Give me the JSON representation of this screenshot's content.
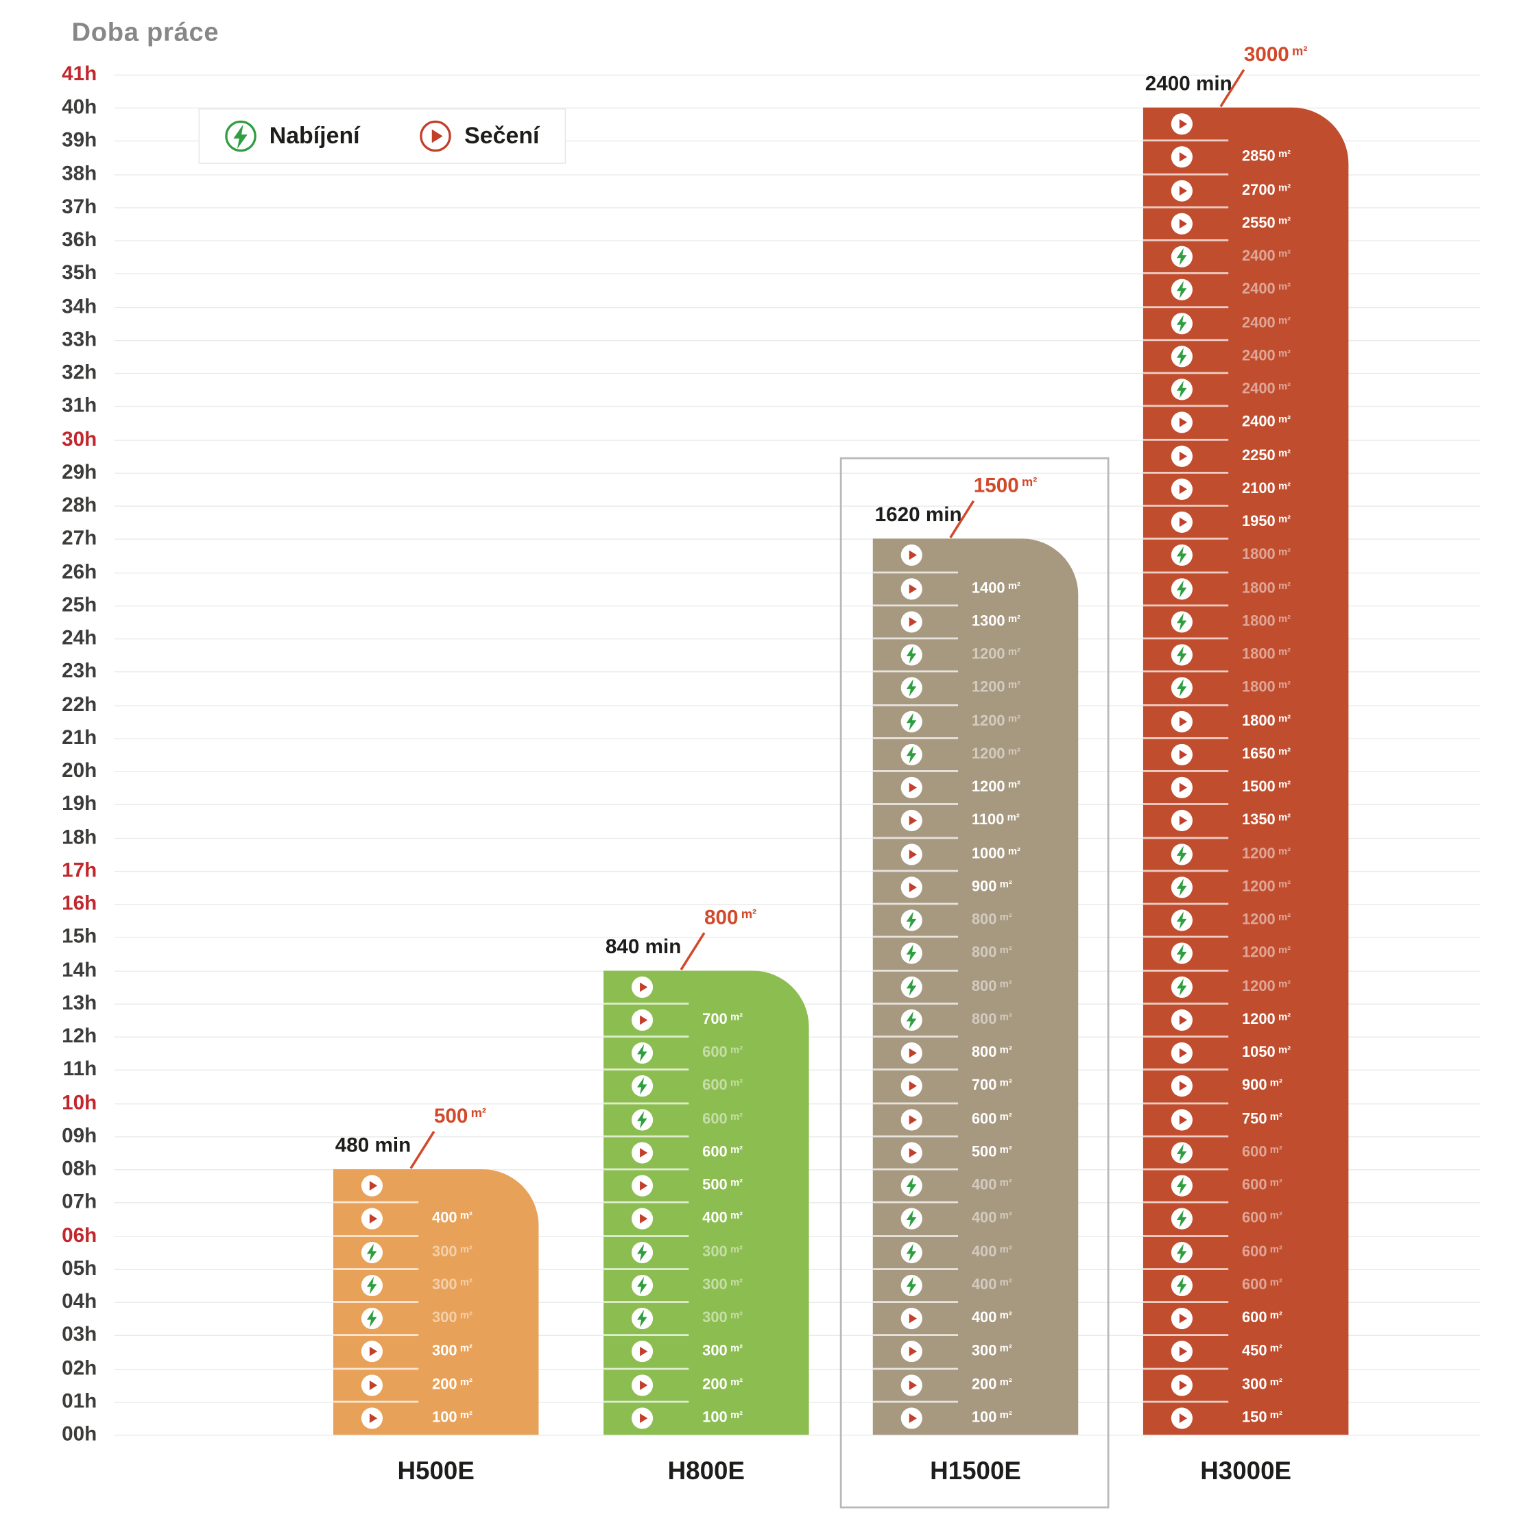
{
  "title": "Doba práce",
  "legend": {
    "items": [
      {
        "id": "charge",
        "label": "Nabíjení"
      },
      {
        "id": "mow",
        "label": "Sečení"
      }
    ]
  },
  "y_axis": {
    "tick_suffix": "h",
    "ticks": [
      "00h",
      "01h",
      "02h",
      "03h",
      "04h",
      "05h",
      "06h",
      "07h",
      "08h",
      "09h",
      "10h",
      "11h",
      "12h",
      "13h",
      "14h",
      "15h",
      "16h",
      "17h",
      "18h",
      "19h",
      "20h",
      "21h",
      "22h",
      "23h",
      "24h",
      "25h",
      "26h",
      "27h",
      "28h",
      "29h",
      "30h",
      "31h",
      "32h",
      "33h",
      "34h",
      "35h",
      "36h",
      "37h",
      "38h",
      "39h",
      "40h",
      "41h"
    ],
    "red_ticks": [
      "06h",
      "10h",
      "16h",
      "17h",
      "30h",
      "41h"
    ]
  },
  "colors": {
    "mow_icon": "#C23F2B",
    "charge_icon": "#2F9E41",
    "annotation": "#D2492A",
    "axis_text": "#3C3C3B",
    "axis_highlight": "#C1272D",
    "gridline": "#EAEAEA",
    "selection_frame": "#B9B9B9",
    "title_text": "#878787",
    "model_name_text": "#1D1D1B"
  },
  "chart_data": {
    "type": "bar",
    "title": "Doba práce",
    "y_unit": "h",
    "ylim": [
      0,
      41
    ],
    "grid": true,
    "x_categories": [
      "H500E",
      "H800E",
      "H1500E",
      "H3000E"
    ],
    "models": [
      {
        "name": "H500E",
        "color": "#E8A158",
        "hours": 8,
        "total_label": "480 min",
        "final_area": {
          "area": "500",
          "unit": "m²"
        },
        "selected": false,
        "rows": [
          {
            "activity": "mow",
            "area": "",
            "unit": "",
            "faded": false
          },
          {
            "activity": "mow",
            "area": "400",
            "unit": "m²",
            "faded": false
          },
          {
            "activity": "charge",
            "area": "300",
            "unit": "m²",
            "faded": true
          },
          {
            "activity": "charge",
            "area": "300",
            "unit": "m²",
            "faded": true
          },
          {
            "activity": "charge",
            "area": "300",
            "unit": "m²",
            "faded": true
          },
          {
            "activity": "mow",
            "area": "300",
            "unit": "m²",
            "faded": false
          },
          {
            "activity": "mow",
            "area": "200",
            "unit": "m²",
            "faded": false
          },
          {
            "activity": "mow",
            "area": "100",
            "unit": "m²",
            "faded": false
          }
        ]
      },
      {
        "name": "H800E",
        "color": "#8CBD50",
        "hours": 14,
        "total_label": "840 min",
        "final_area": {
          "area": "800",
          "unit": "m²"
        },
        "selected": false,
        "rows": [
          {
            "activity": "mow",
            "area": "",
            "unit": "",
            "faded": false
          },
          {
            "activity": "mow",
            "area": "700",
            "unit": "m²",
            "faded": false
          },
          {
            "activity": "charge",
            "area": "600",
            "unit": "m²",
            "faded": true
          },
          {
            "activity": "charge",
            "area": "600",
            "unit": "m²",
            "faded": true
          },
          {
            "activity": "charge",
            "area": "600",
            "unit": "m²",
            "faded": true
          },
          {
            "activity": "mow",
            "area": "600",
            "unit": "m²",
            "faded": false
          },
          {
            "activity": "mow",
            "area": "500",
            "unit": "m²",
            "faded": false
          },
          {
            "activity": "mow",
            "area": "400",
            "unit": "m²",
            "faded": false
          },
          {
            "activity": "charge",
            "area": "300",
            "unit": "m²",
            "faded": true
          },
          {
            "activity": "charge",
            "area": "300",
            "unit": "m²",
            "faded": true
          },
          {
            "activity": "charge",
            "area": "300",
            "unit": "m²",
            "faded": true
          },
          {
            "activity": "mow",
            "area": "300",
            "unit": "m²",
            "faded": false
          },
          {
            "activity": "mow",
            "area": "200",
            "unit": "m²",
            "faded": false
          },
          {
            "activity": "mow",
            "area": "100",
            "unit": "m²",
            "faded": false
          }
        ]
      },
      {
        "name": "H1500E",
        "color": "#A79880",
        "hours": 27,
        "total_label": "1620 min",
        "final_area": {
          "area": "1500",
          "unit": "m²"
        },
        "selected": true,
        "rows": [
          {
            "activity": "mow",
            "area": "",
            "unit": "",
            "faded": false
          },
          {
            "activity": "mow",
            "area": "1400",
            "unit": "m²",
            "faded": false
          },
          {
            "activity": "mow",
            "area": "1300",
            "unit": "m²",
            "faded": false
          },
          {
            "activity": "charge",
            "area": "1200",
            "unit": "m²",
            "faded": true
          },
          {
            "activity": "charge",
            "area": "1200",
            "unit": "m²",
            "faded": true
          },
          {
            "activity": "charge",
            "area": "1200",
            "unit": "m²",
            "faded": true
          },
          {
            "activity": "charge",
            "area": "1200",
            "unit": "m²",
            "faded": true
          },
          {
            "activity": "mow",
            "area": "1200",
            "unit": "m²",
            "faded": false
          },
          {
            "activity": "mow",
            "area": "1100",
            "unit": "m²",
            "faded": false
          },
          {
            "activity": "mow",
            "area": "1000",
            "unit": "m²",
            "faded": false
          },
          {
            "activity": "mow",
            "area": "900",
            "unit": "m²",
            "faded": false
          },
          {
            "activity": "charge",
            "area": "800",
            "unit": "m²",
            "faded": true
          },
          {
            "activity": "charge",
            "area": "800",
            "unit": "m²",
            "faded": true
          },
          {
            "activity": "charge",
            "area": "800",
            "unit": "m²",
            "faded": true
          },
          {
            "activity": "charge",
            "area": "800",
            "unit": "m²",
            "faded": true
          },
          {
            "activity": "mow",
            "area": "800",
            "unit": "m²",
            "faded": false
          },
          {
            "activity": "mow",
            "area": "700",
            "unit": "m²",
            "faded": false
          },
          {
            "activity": "mow",
            "area": "600",
            "unit": "m²",
            "faded": false
          },
          {
            "activity": "mow",
            "area": "500",
            "unit": "m²",
            "faded": false
          },
          {
            "activity": "charge",
            "area": "400",
            "unit": "m²",
            "faded": true
          },
          {
            "activity": "charge",
            "area": "400",
            "unit": "m²",
            "faded": true
          },
          {
            "activity": "charge",
            "area": "400",
            "unit": "m²",
            "faded": true
          },
          {
            "activity": "charge",
            "area": "400",
            "unit": "m²",
            "faded": true
          },
          {
            "activity": "mow",
            "area": "400",
            "unit": "m²",
            "faded": false
          },
          {
            "activity": "mow",
            "area": "300",
            "unit": "m²",
            "faded": false
          },
          {
            "activity": "mow",
            "area": "200",
            "unit": "m²",
            "faded": false
          },
          {
            "activity": "mow",
            "area": "100",
            "unit": "m²",
            "faded": false
          }
        ]
      },
      {
        "name": "H3000E",
        "color": "#C04D2E",
        "hours": 40,
        "total_label": "2400 min",
        "final_area": {
          "area": "3000",
          "unit": "m²"
        },
        "selected": false,
        "rows": [
          {
            "activity": "mow",
            "area": "",
            "unit": "",
            "faded": false
          },
          {
            "activity": "mow",
            "area": "2850",
            "unit": "m²",
            "faded": false
          },
          {
            "activity": "mow",
            "area": "2700",
            "unit": "m²",
            "faded": false
          },
          {
            "activity": "mow",
            "area": "2550",
            "unit": "m²",
            "faded": false
          },
          {
            "activity": "charge",
            "area": "2400",
            "unit": "m²",
            "faded": true
          },
          {
            "activity": "charge",
            "area": "2400",
            "unit": "m²",
            "faded": true
          },
          {
            "activity": "charge",
            "area": "2400",
            "unit": "m²",
            "faded": true
          },
          {
            "activity": "charge",
            "area": "2400",
            "unit": "m²",
            "faded": true
          },
          {
            "activity": "charge",
            "area": "2400",
            "unit": "m²",
            "faded": true
          },
          {
            "activity": "mow",
            "area": "2400",
            "unit": "m²",
            "faded": false
          },
          {
            "activity": "mow",
            "area": "2250",
            "unit": "m²",
            "faded": false
          },
          {
            "activity": "mow",
            "area": "2100",
            "unit": "m²",
            "faded": false
          },
          {
            "activity": "mow",
            "area": "1950",
            "unit": "m²",
            "faded": false
          },
          {
            "activity": "charge",
            "area": "1800",
            "unit": "m²",
            "faded": true
          },
          {
            "activity": "charge",
            "area": "1800",
            "unit": "m²",
            "faded": true
          },
          {
            "activity": "charge",
            "area": "1800",
            "unit": "m²",
            "faded": true
          },
          {
            "activity": "charge",
            "area": "1800",
            "unit": "m²",
            "faded": true
          },
          {
            "activity": "charge",
            "area": "1800",
            "unit": "m²",
            "faded": true
          },
          {
            "activity": "mow",
            "area": "1800",
            "unit": "m²",
            "faded": false
          },
          {
            "activity": "mow",
            "area": "1650",
            "unit": "m²",
            "faded": false
          },
          {
            "activity": "mow",
            "area": "1500",
            "unit": "m²",
            "faded": false
          },
          {
            "activity": "mow",
            "area": "1350",
            "unit": "m²",
            "faded": false
          },
          {
            "activity": "charge",
            "area": "1200",
            "unit": "m²",
            "faded": true
          },
          {
            "activity": "charge",
            "area": "1200",
            "unit": "m²",
            "faded": true
          },
          {
            "activity": "charge",
            "area": "1200",
            "unit": "m²",
            "faded": true
          },
          {
            "activity": "charge",
            "area": "1200",
            "unit": "m²",
            "faded": true
          },
          {
            "activity": "charge",
            "area": "1200",
            "unit": "m²",
            "faded": true
          },
          {
            "activity": "mow",
            "area": "1200",
            "unit": "m²",
            "faded": false
          },
          {
            "activity": "mow",
            "area": "1050",
            "unit": "m²",
            "faded": false
          },
          {
            "activity": "mow",
            "area": "900",
            "unit": "m²",
            "faded": false
          },
          {
            "activity": "mow",
            "area": "750",
            "unit": "m²",
            "faded": false
          },
          {
            "activity": "charge",
            "area": "600",
            "unit": "m²",
            "faded": true
          },
          {
            "activity": "charge",
            "area": "600",
            "unit": "m²",
            "faded": true
          },
          {
            "activity": "charge",
            "area": "600",
            "unit": "m²",
            "faded": true
          },
          {
            "activity": "charge",
            "area": "600",
            "unit": "m²",
            "faded": true
          },
          {
            "activity": "charge",
            "area": "600",
            "unit": "m²",
            "faded": true
          },
          {
            "activity": "mow",
            "area": "600",
            "unit": "m²",
            "faded": false
          },
          {
            "activity": "mow",
            "area": "450",
            "unit": "m²",
            "faded": false
          },
          {
            "activity": "mow",
            "area": "300",
            "unit": "m²",
            "faded": false
          },
          {
            "activity": "mow",
            "area": "150",
            "unit": "m²",
            "faded": false
          }
        ]
      }
    ]
  }
}
